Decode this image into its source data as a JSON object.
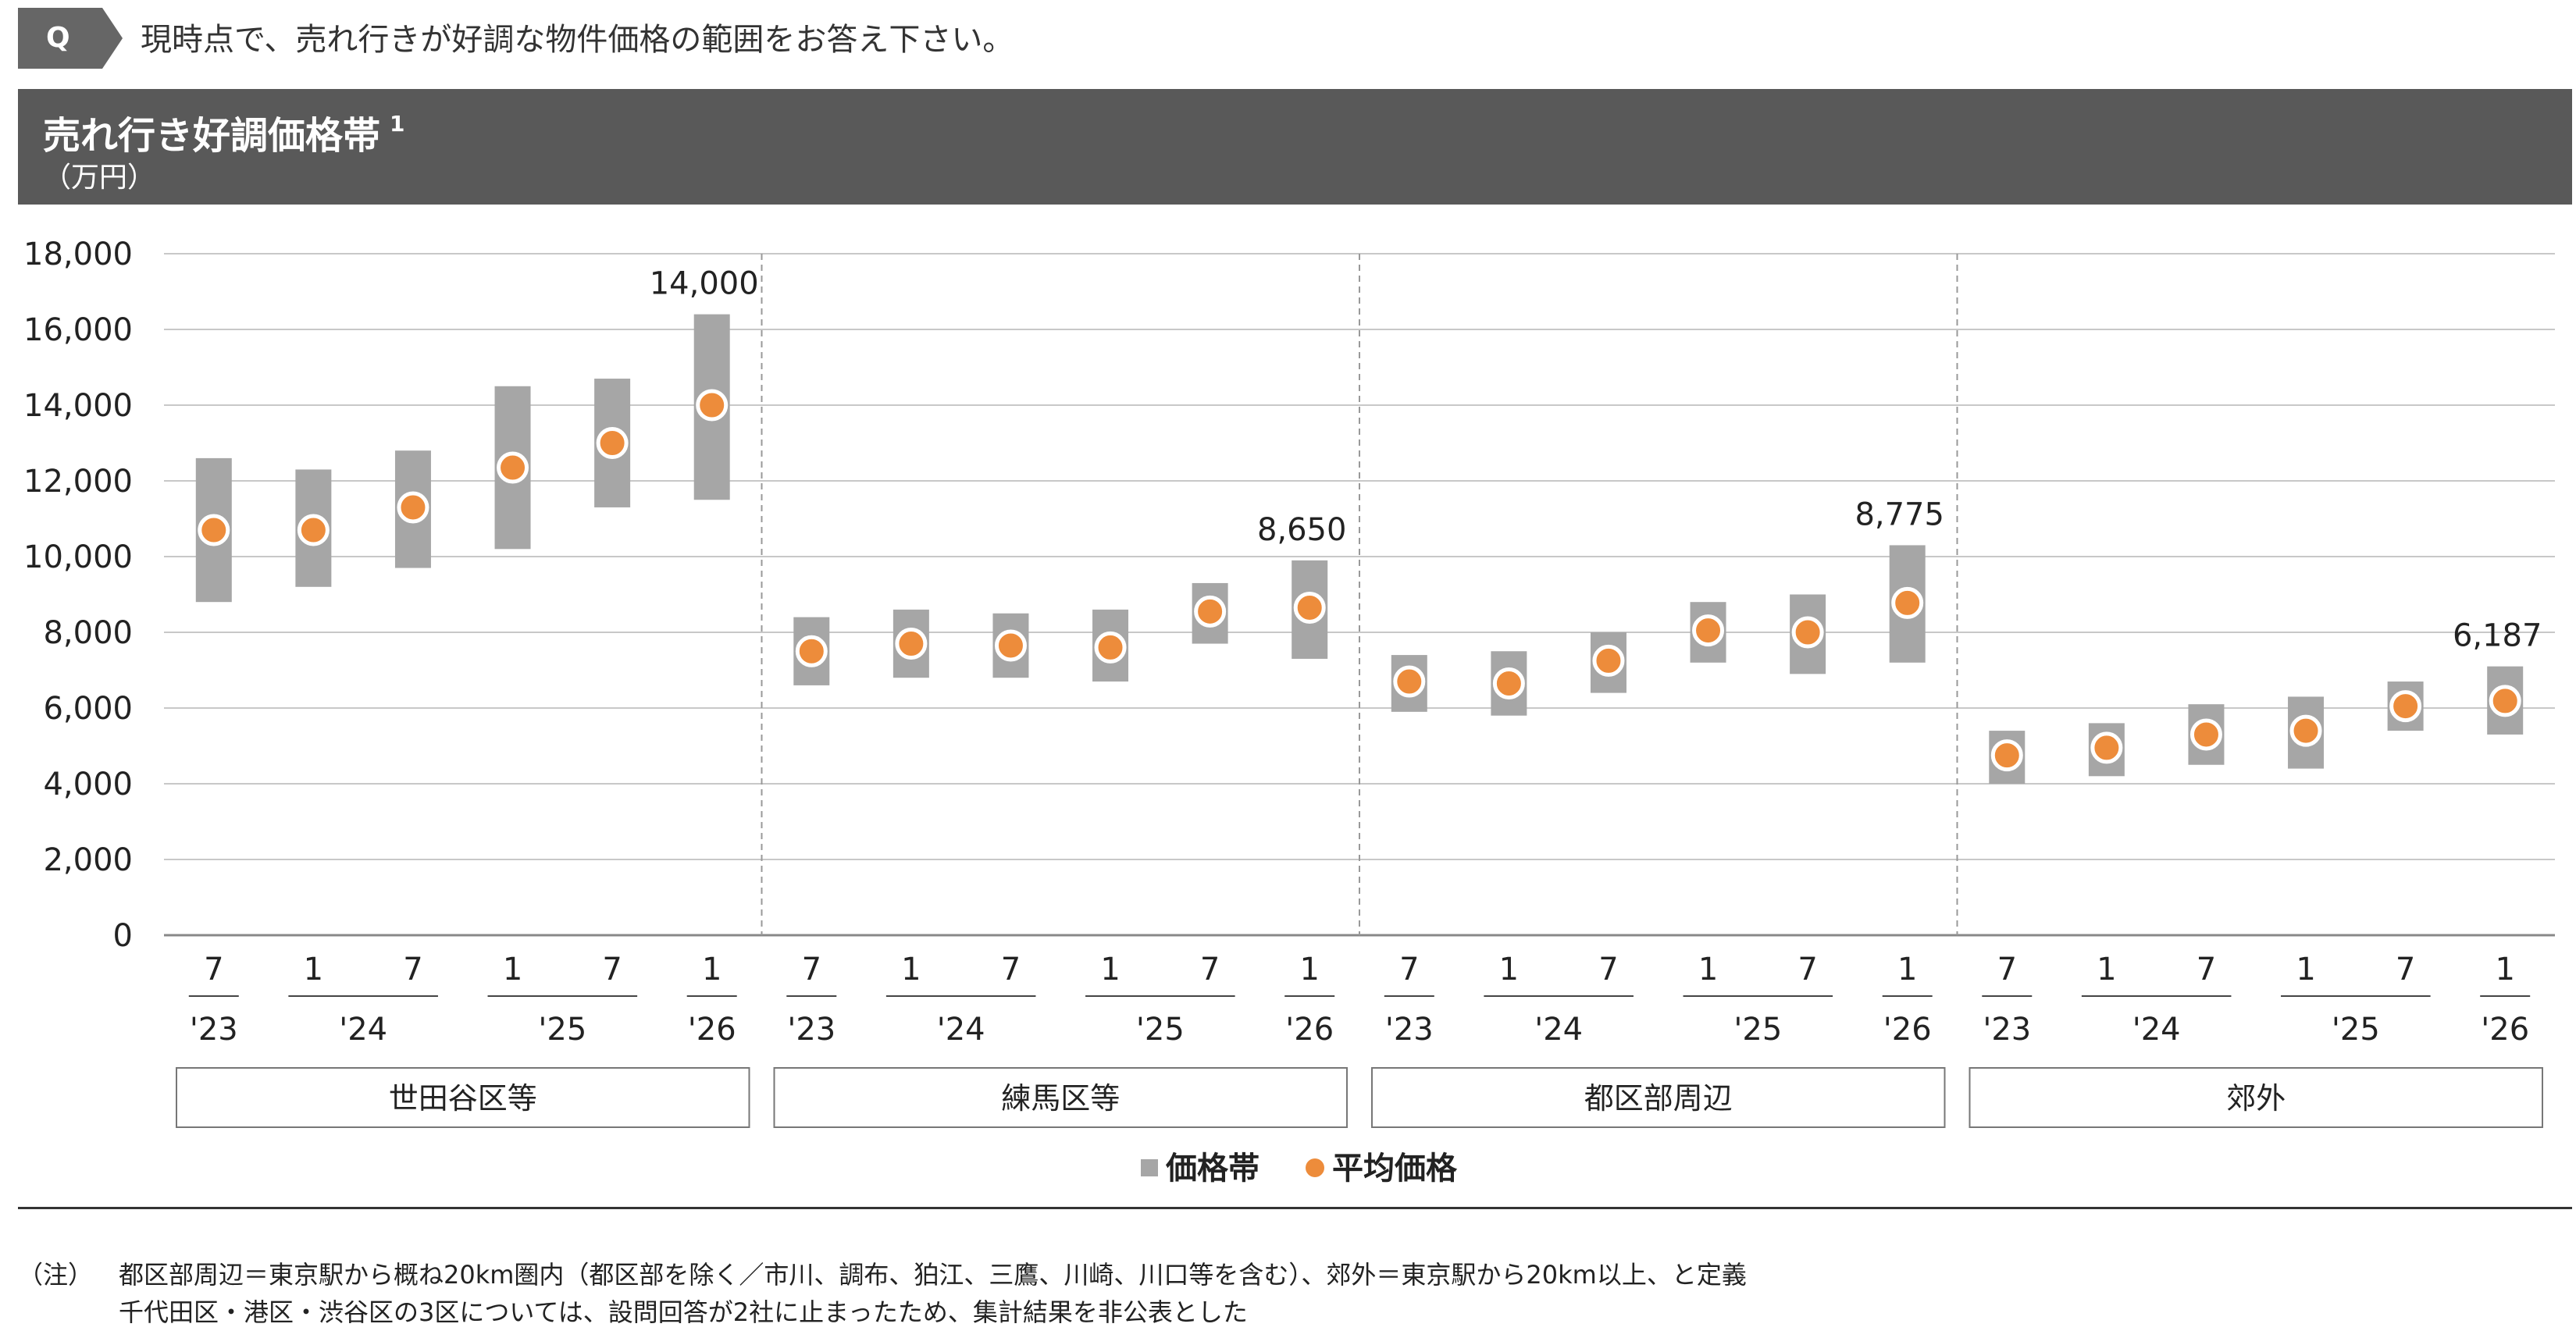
{
  "question": {
    "badge": "Q",
    "text": "現時点で、売れ行きが好調な物件価格の範囲をお答え下さい。"
  },
  "header": {
    "title": "売れ行き好調価格帯",
    "footnote_ref": "1",
    "unit": "（万円）"
  },
  "chart_data": {
    "type": "range-bar",
    "title": "売れ行き好調価格帯",
    "ylabel": "（万円）",
    "ylim": [
      0,
      18000
    ],
    "yticks": [
      0,
      2000,
      4000,
      6000,
      8000,
      10000,
      12000,
      14000,
      16000,
      18000
    ],
    "ytick_labels": [
      "0",
      "2,000",
      "4,000",
      "6,000",
      "8,000",
      "10,000",
      "12,000",
      "14,000",
      "16,000",
      "18,000"
    ],
    "grid": true,
    "month_labels": [
      "7",
      "1",
      "7",
      "1",
      "7",
      "1"
    ],
    "year_groups": [
      {
        "label": "'23",
        "span": [
          0,
          0
        ]
      },
      {
        "label": "'24",
        "span": [
          1,
          2
        ]
      },
      {
        "label": "'25",
        "span": [
          3,
          4
        ]
      },
      {
        "label": "'26",
        "span": [
          5,
          5
        ]
      }
    ],
    "groups": [
      {
        "name": "世田谷区等",
        "ranges": [
          [
            8800,
            12600
          ],
          [
            9200,
            12300
          ],
          [
            9700,
            12800
          ],
          [
            10200,
            14500
          ],
          [
            11300,
            14700
          ],
          [
            11500,
            16400
          ]
        ],
        "averages": [
          10700,
          10700,
          11300,
          12350,
          13000,
          14000
        ],
        "last_label": "14,000"
      },
      {
        "name": "練馬区等",
        "ranges": [
          [
            6600,
            8400
          ],
          [
            6800,
            8600
          ],
          [
            6800,
            8500
          ],
          [
            6700,
            8600
          ],
          [
            7700,
            9300
          ],
          [
            7300,
            9900
          ]
        ],
        "averages": [
          7500,
          7700,
          7650,
          7600,
          8550,
          8650
        ],
        "last_label": "8,650"
      },
      {
        "name": "都区部周辺",
        "ranges": [
          [
            5900,
            7400
          ],
          [
            5800,
            7500
          ],
          [
            6400,
            8000
          ],
          [
            7200,
            8800
          ],
          [
            6900,
            9000
          ],
          [
            7200,
            10300
          ]
        ],
        "averages": [
          6700,
          6650,
          7250,
          8050,
          8000,
          8775
        ],
        "last_label": "8,775"
      },
      {
        "name": "郊外",
        "ranges": [
          [
            4000,
            5400
          ],
          [
            4200,
            5600
          ],
          [
            4500,
            6100
          ],
          [
            4400,
            6300
          ],
          [
            5400,
            6700
          ],
          [
            5300,
            7100
          ]
        ],
        "averages": [
          4750,
          4950,
          5300,
          5400,
          6050,
          6187
        ],
        "last_label": "6,187"
      }
    ],
    "legend": [
      {
        "label": "価格帯",
        "marker": "square",
        "color": "#a6a6a6"
      },
      {
        "label": "平均価格",
        "marker": "circle",
        "color": "#ed8c3b"
      }
    ]
  },
  "colors": {
    "range_bar": "#a6a6a6",
    "average_dot": "#ed8c3b",
    "header_band": "#595959",
    "gridline": "#c8c8c8"
  },
  "notes": {
    "label": "（注）",
    "line1": "都区部周辺＝東京駅から概ね20km圏内（都区部を除く／市川、調布、狛江、三鷹、川崎、川口等を含む）、郊外＝東京駅から20km以上、と定義",
    "line2": "千代田区・港区・渋谷区の3区については、設問回答が2社に止まったため、集計結果を非公表とした"
  }
}
